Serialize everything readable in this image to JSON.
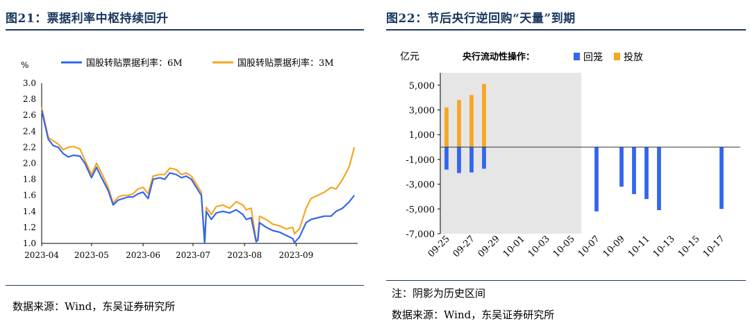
{
  "left": {
    "title": "图21：票据利率中枢持续回升",
    "source": "数据来源：Wind，东吴证券研究所"
  },
  "right": {
    "title": "图22：节后央行逆回购“天量”到期",
    "note": "注：阴影为历史区间",
    "source": "数据来源：Wind，东吴证券研究所"
  },
  "colors": {
    "blue": "#3366ee",
    "orange": "#f5a623",
    "shade": "#e6e6e6",
    "navy": "#1f3864"
  },
  "chart_data": [
    {
      "type": "line",
      "ylabel": "%",
      "ylim": [
        1.0,
        3.0
      ],
      "yticks": [
        "1.0",
        "1.2",
        "1.4",
        "1.6",
        "1.8",
        "2.0",
        "2.2",
        "2.4",
        "2.6",
        "2.8",
        "3.0"
      ],
      "xticks": [
        "2023-04",
        "2023-05",
        "2023-06",
        "2023-07",
        "2023-08",
        "2023-09"
      ],
      "series": [
        {
          "name": "国股转贴票据利率：6M",
          "color": "#3366ee",
          "points": [
            [
              "2023-04-01",
              2.66
            ],
            [
              "2023-04-05",
              2.3
            ],
            [
              "2023-04-08",
              2.22
            ],
            [
              "2023-04-11",
              2.2
            ],
            [
              "2023-04-14",
              2.12
            ],
            [
              "2023-04-17",
              2.08
            ],
            [
              "2023-04-20",
              2.1
            ],
            [
              "2023-04-24",
              2.09
            ],
            [
              "2023-04-27",
              2.0
            ],
            [
              "2023-05-01",
              1.82
            ],
            [
              "2023-05-04",
              1.95
            ],
            [
              "2023-05-07",
              1.82
            ],
            [
              "2023-05-11",
              1.66
            ],
            [
              "2023-05-14",
              1.48
            ],
            [
              "2023-05-17",
              1.54
            ],
            [
              "2023-05-20",
              1.56
            ],
            [
              "2023-05-23",
              1.58
            ],
            [
              "2023-05-26",
              1.58
            ],
            [
              "2023-05-29",
              1.62
            ],
            [
              "2023-06-01",
              1.64
            ],
            [
              "2023-06-04",
              1.56
            ],
            [
              "2023-06-07",
              1.8
            ],
            [
              "2023-06-11",
              1.82
            ],
            [
              "2023-06-14",
              1.8
            ],
            [
              "2023-06-17",
              1.88
            ],
            [
              "2023-06-21",
              1.86
            ],
            [
              "2023-06-24",
              1.82
            ],
            [
              "2023-06-27",
              1.84
            ],
            [
              "2023-06-30",
              1.8
            ],
            [
              "2023-07-03",
              1.7
            ],
            [
              "2023-07-06",
              1.6
            ],
            [
              "2023-07-08",
              1.0
            ],
            [
              "2023-07-09",
              1.4
            ],
            [
              "2023-07-12",
              1.3
            ],
            [
              "2023-07-15",
              1.38
            ],
            [
              "2023-07-19",
              1.4
            ],
            [
              "2023-07-23",
              1.38
            ],
            [
              "2023-07-27",
              1.42
            ],
            [
              "2023-07-31",
              1.36
            ],
            [
              "2023-08-02",
              1.3
            ],
            [
              "2023-08-05",
              1.32
            ],
            [
              "2023-08-08",
              1.02
            ],
            [
              "2023-08-09",
              1.04
            ],
            [
              "2023-08-10",
              1.26
            ],
            [
              "2023-08-14",
              1.2
            ],
            [
              "2023-08-18",
              1.16
            ],
            [
              "2023-08-22",
              1.14
            ],
            [
              "2023-08-26",
              1.1
            ],
            [
              "2023-08-30",
              1.06
            ],
            [
              "2023-08-31",
              1.01
            ],
            [
              "2023-09-03",
              1.08
            ],
            [
              "2023-09-07",
              1.26
            ],
            [
              "2023-09-10",
              1.3
            ],
            [
              "2023-09-14",
              1.32
            ],
            [
              "2023-09-18",
              1.34
            ],
            [
              "2023-09-22",
              1.34
            ],
            [
              "2023-09-25",
              1.4
            ],
            [
              "2023-09-29",
              1.44
            ],
            [
              "2023-10-03",
              1.52
            ],
            [
              "2023-10-06",
              1.6
            ]
          ]
        },
        {
          "name": "国股转贴票据利率：3M",
          "color": "#f5a623",
          "points": [
            [
              "2023-04-01",
              2.7
            ],
            [
              "2023-04-05",
              2.32
            ],
            [
              "2023-04-08",
              2.28
            ],
            [
              "2023-04-11",
              2.24
            ],
            [
              "2023-04-14",
              2.17
            ],
            [
              "2023-04-17",
              2.2
            ],
            [
              "2023-04-20",
              2.21
            ],
            [
              "2023-04-24",
              2.18
            ],
            [
              "2023-04-27",
              2.04
            ],
            [
              "2023-05-01",
              1.86
            ],
            [
              "2023-05-04",
              2.0
            ],
            [
              "2023-05-07",
              1.88
            ],
            [
              "2023-05-11",
              1.7
            ],
            [
              "2023-05-14",
              1.5
            ],
            [
              "2023-05-17",
              1.58
            ],
            [
              "2023-05-20",
              1.6
            ],
            [
              "2023-05-23",
              1.6
            ],
            [
              "2023-05-26",
              1.62
            ],
            [
              "2023-05-29",
              1.68
            ],
            [
              "2023-06-01",
              1.7
            ],
            [
              "2023-06-04",
              1.62
            ],
            [
              "2023-06-07",
              1.84
            ],
            [
              "2023-06-11",
              1.86
            ],
            [
              "2023-06-14",
              1.86
            ],
            [
              "2023-06-17",
              1.94
            ],
            [
              "2023-06-21",
              1.92
            ],
            [
              "2023-06-24",
              1.86
            ],
            [
              "2023-06-27",
              1.88
            ],
            [
              "2023-06-30",
              1.84
            ],
            [
              "2023-07-03",
              1.74
            ],
            [
              "2023-07-06",
              1.64
            ],
            [
              "2023-07-08",
              1.01
            ],
            [
              "2023-07-09",
              1.45
            ],
            [
              "2023-07-12",
              1.36
            ],
            [
              "2023-07-15",
              1.46
            ],
            [
              "2023-07-19",
              1.48
            ],
            [
              "2023-07-23",
              1.44
            ],
            [
              "2023-07-27",
              1.52
            ],
            [
              "2023-07-31",
              1.48
            ],
            [
              "2023-08-02",
              1.42
            ],
            [
              "2023-08-05",
              1.44
            ],
            [
              "2023-08-08",
              1.03
            ],
            [
              "2023-08-09",
              1.06
            ],
            [
              "2023-08-10",
              1.34
            ],
            [
              "2023-08-14",
              1.3
            ],
            [
              "2023-08-18",
              1.24
            ],
            [
              "2023-08-22",
              1.22
            ],
            [
              "2023-08-26",
              1.18
            ],
            [
              "2023-08-30",
              1.2
            ],
            [
              "2023-08-31",
              1.12
            ],
            [
              "2023-09-03",
              1.18
            ],
            [
              "2023-09-07",
              1.44
            ],
            [
              "2023-09-10",
              1.56
            ],
            [
              "2023-09-14",
              1.6
            ],
            [
              "2023-09-18",
              1.64
            ],
            [
              "2023-09-22",
              1.7
            ],
            [
              "2023-09-25",
              1.68
            ],
            [
              "2023-09-29",
              1.8
            ],
            [
              "2023-10-03",
              1.96
            ],
            [
              "2023-10-06",
              2.2
            ]
          ]
        }
      ],
      "legend": "top"
    },
    {
      "type": "bar",
      "ylabel": "亿元",
      "ylim": [
        -7000,
        6000
      ],
      "yticks": [
        "-7,000",
        "-5,000",
        "-3,000",
        "-1,000",
        "1,000",
        "3,000",
        "5,000"
      ],
      "legend_title": "央行流动性操作：",
      "categories": [
        "09-25",
        "09-26",
        "09-27",
        "09-28",
        "09-29",
        "09-30",
        "10-01",
        "10-02",
        "10-03",
        "10-04",
        "10-05",
        "10-06",
        "10-07",
        "10-08",
        "10-09",
        "10-10",
        "10-11",
        "10-12",
        "10-13",
        "10-14",
        "10-15",
        "10-16",
        "10-17",
        "10-18"
      ],
      "tick_labels": [
        "09-25",
        "09-27",
        "09-29",
        "10-01",
        "10-03",
        "10-05",
        "10-07",
        "10-09",
        "10-11",
        "10-13",
        "10-15",
        "10-17"
      ],
      "shaded_range": [
        "09-25",
        "10-05"
      ],
      "series": [
        {
          "name": "回笼",
          "color": "#3366ee",
          "values": [
            -1820,
            -2100,
            -2050,
            -1750,
            0,
            0,
            0,
            0,
            0,
            0,
            0,
            0,
            -5200,
            0,
            -3200,
            -3800,
            -4200,
            -5100,
            0,
            0,
            0,
            0,
            -5000,
            0
          ]
        },
        {
          "name": "投放",
          "color": "#f5a623",
          "values": [
            3200,
            3800,
            4200,
            5100,
            0,
            0,
            0,
            0,
            0,
            0,
            0,
            0,
            0,
            0,
            0,
            0,
            0,
            0,
            0,
            0,
            0,
            0,
            0,
            0
          ]
        }
      ]
    }
  ]
}
